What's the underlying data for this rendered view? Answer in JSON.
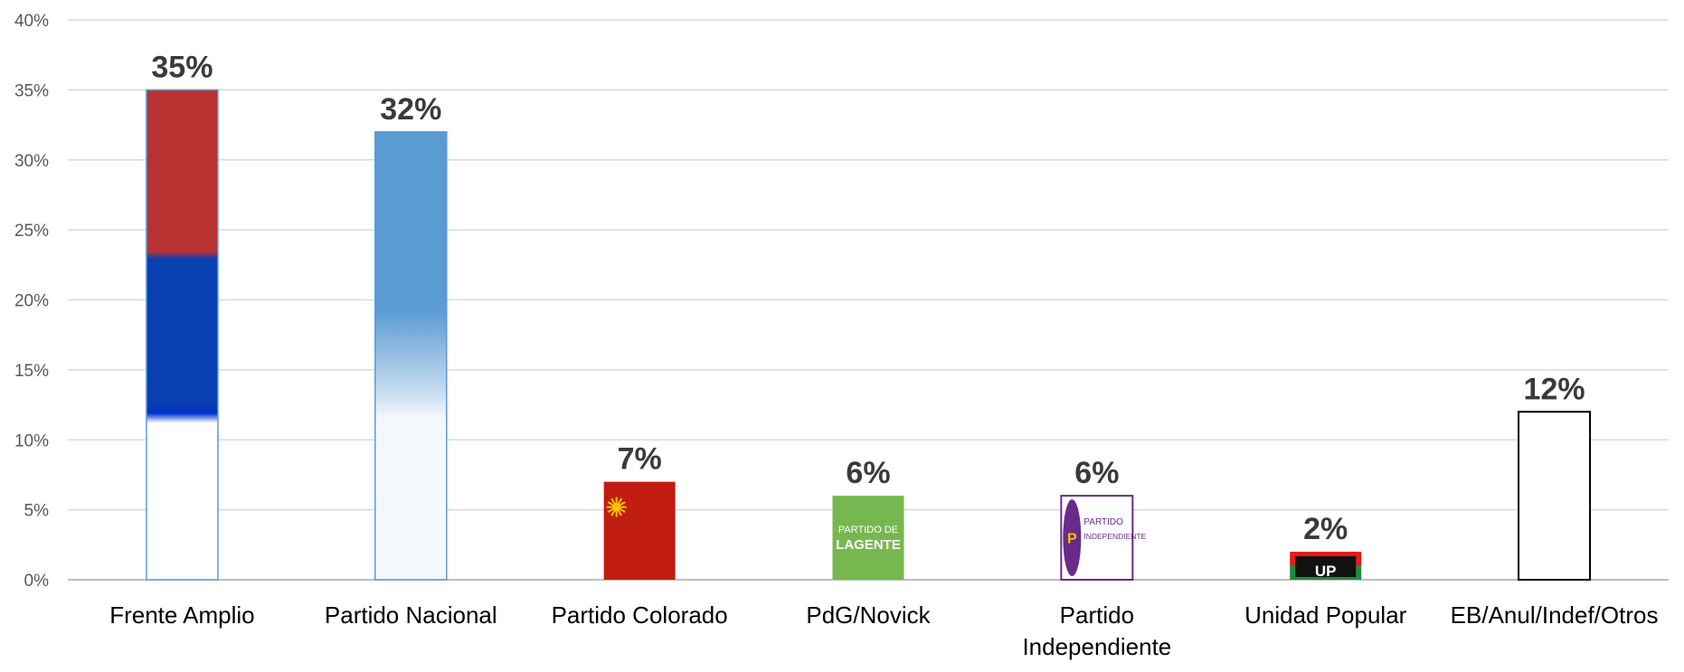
{
  "chart_data": {
    "type": "bar",
    "categories": [
      "Frente Amplio",
      "Partido Nacional",
      "Partido Colorado",
      "PdG/Novick",
      "Partido Independiente",
      "Unidad Popular",
      "EB/Anul/Indef/Otros"
    ],
    "category_lines": [
      [
        "Frente Amplio"
      ],
      [
        "Partido Nacional"
      ],
      [
        "Partido Colorado"
      ],
      [
        "PdG/Novick"
      ],
      [
        "Partido",
        "Independiente"
      ],
      [
        "Unidad Popular"
      ],
      [
        "EB/Anul/Indef/Otros"
      ]
    ],
    "values": [
      35,
      32,
      7,
      6,
      6,
      2,
      12
    ],
    "data_labels": [
      "35%",
      "32%",
      "7%",
      "6%",
      "6%",
      "2%",
      "12%"
    ],
    "ylim": [
      0,
      40
    ],
    "yticks": [
      0,
      5,
      10,
      15,
      20,
      25,
      30,
      35,
      40
    ],
    "ytick_labels": [
      "0%",
      "5%",
      "10%",
      "15%",
      "20%",
      "25%",
      "30%",
      "35%",
      "40%"
    ],
    "grid": true,
    "title": "",
    "xlabel": "",
    "ylabel": "",
    "bar_fills": [
      "frente-amplio-flag",
      "partido-nacional-gradient",
      "partido-colorado-logo",
      "pdg-logo",
      "partido-independiente-logo",
      "unidad-popular-logo",
      "empty-white"
    ],
    "logo_texts": {
      "pdg_line1": "PARTIDO DE",
      "pdg_line2": "LAGENTE",
      "pi_line1": "PARTIDO",
      "pi_line2": "INDEPENDIENTE",
      "up_text": "UP"
    },
    "colors": {
      "fa_red": "#b83232",
      "fa_blue": "#0a3fb0",
      "pn_blue": "#5b9bd5",
      "pc_red": "#c01d10",
      "pc_sun": "#f5c400",
      "pdg_green": "#77b750",
      "pi_purple": "#6a2a8a",
      "up_red": "#e21b1b",
      "up_green": "#1e8b3a",
      "label_text": "#3a3a3a",
      "grid": "#d9d9d9"
    }
  }
}
